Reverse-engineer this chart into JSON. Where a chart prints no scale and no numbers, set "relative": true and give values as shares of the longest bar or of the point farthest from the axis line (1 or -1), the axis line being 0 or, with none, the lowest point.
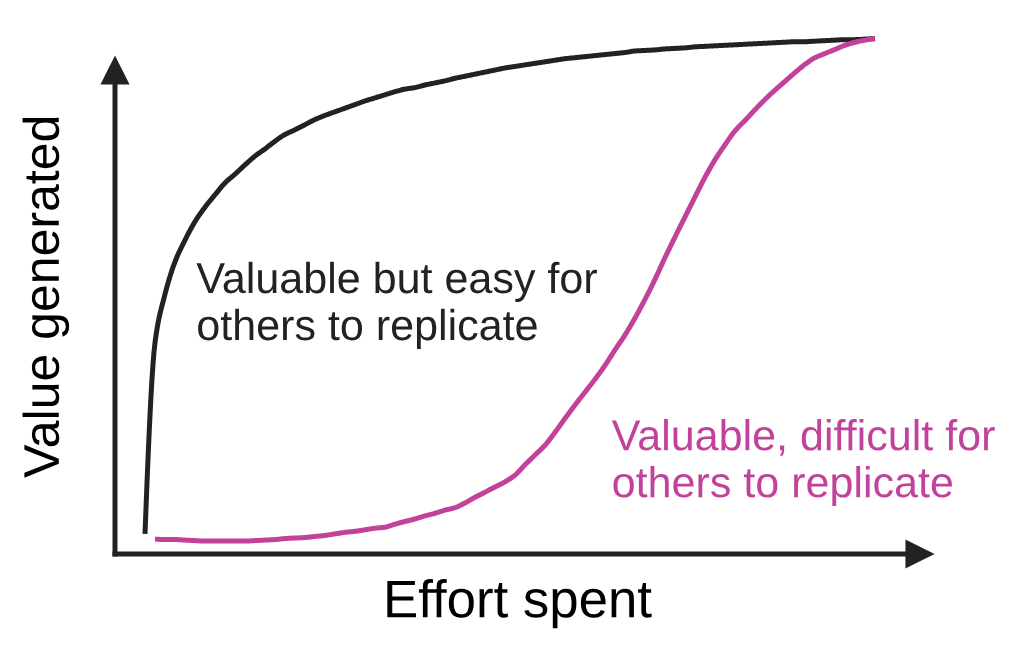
{
  "chart_data": {
    "type": "line",
    "relative": true,
    "xlabel": "Effort spent",
    "ylabel": "Value generated",
    "categories": [
      null,
      null,
      null,
      null,
      null,
      null,
      null,
      null,
      null,
      null,
      null,
      null,
      null,
      null,
      null,
      null,
      null,
      null,
      null,
      null,
      null,
      null,
      null,
      null,
      null,
      null,
      null,
      null,
      null,
      null,
      null,
      null,
      null,
      null,
      null,
      null,
      null,
      null,
      null,
      null,
      null,
      null,
      null,
      null,
      null,
      null,
      null,
      null,
      null,
      null,
      null,
      null,
      null,
      null,
      null,
      null,
      null,
      null,
      null,
      null,
      null,
      null,
      null,
      null,
      null,
      null,
      null,
      null,
      null,
      null,
      null,
      null,
      null,
      null
    ],
    "series": [
      {
        "name": "Valuable but easy for\nothers to replicate",
        "color": "#222222",
        "values": [
          0.039,
          0.41,
          0.504,
          0.567,
          0.609,
          0.645,
          0.673,
          0.697,
          0.72,
          0.737,
          0.755,
          0.772,
          0.786,
          0.801,
          0.814,
          0.823,
          0.833,
          0.843,
          0.851,
          0.858,
          0.865,
          0.872,
          0.879,
          0.885,
          0.891,
          0.897,
          0.902,
          0.905,
          0.91,
          0.914,
          0.918,
          0.923,
          0.927,
          0.931,
          0.935,
          0.939,
          0.943,
          0.946,
          0.949,
          0.952,
          0.955,
          0.958,
          0.961,
          0.963,
          0.965,
          0.967,
          0.969,
          0.971,
          0.973,
          0.976,
          0.977,
          0.978,
          0.98,
          0.981,
          0.982,
          0.984,
          0.985,
          0.986,
          0.987,
          0.988,
          0.989,
          0.99,
          0.991,
          0.992,
          0.993,
          0.994,
          0.994,
          0.995,
          0.996,
          0.997,
          0.998,
          0.998,
          0.999,
          1.0
        ]
      },
      {
        "name": "Valuable, difficult for\nothers to replicate",
        "color": "#c2419a",
        "values": [
          null,
          0.029,
          0.028,
          0.028,
          0.027,
          0.026,
          0.025,
          0.025,
          0.025,
          0.025,
          0.025,
          0.026,
          0.027,
          0.028,
          0.03,
          0.031,
          0.032,
          0.034,
          0.036,
          0.039,
          0.042,
          0.044,
          0.047,
          0.05,
          0.052,
          0.058,
          0.063,
          0.068,
          0.074,
          0.079,
          0.085,
          0.09,
          0.099,
          0.11,
          0.12,
          0.13,
          0.14,
          0.153,
          0.173,
          0.192,
          0.211,
          0.236,
          0.263,
          0.289,
          0.314,
          0.339,
          0.366,
          0.396,
          0.425,
          0.458,
          0.494,
          0.533,
          0.575,
          0.615,
          0.654,
          0.693,
          0.731,
          0.765,
          0.794,
          0.821,
          0.841,
          0.862,
          0.882,
          0.9,
          0.917,
          0.934,
          0.95,
          0.963,
          0.971,
          0.979,
          0.987,
          0.993,
          0.997,
          1.0
        ]
      }
    ]
  }
}
